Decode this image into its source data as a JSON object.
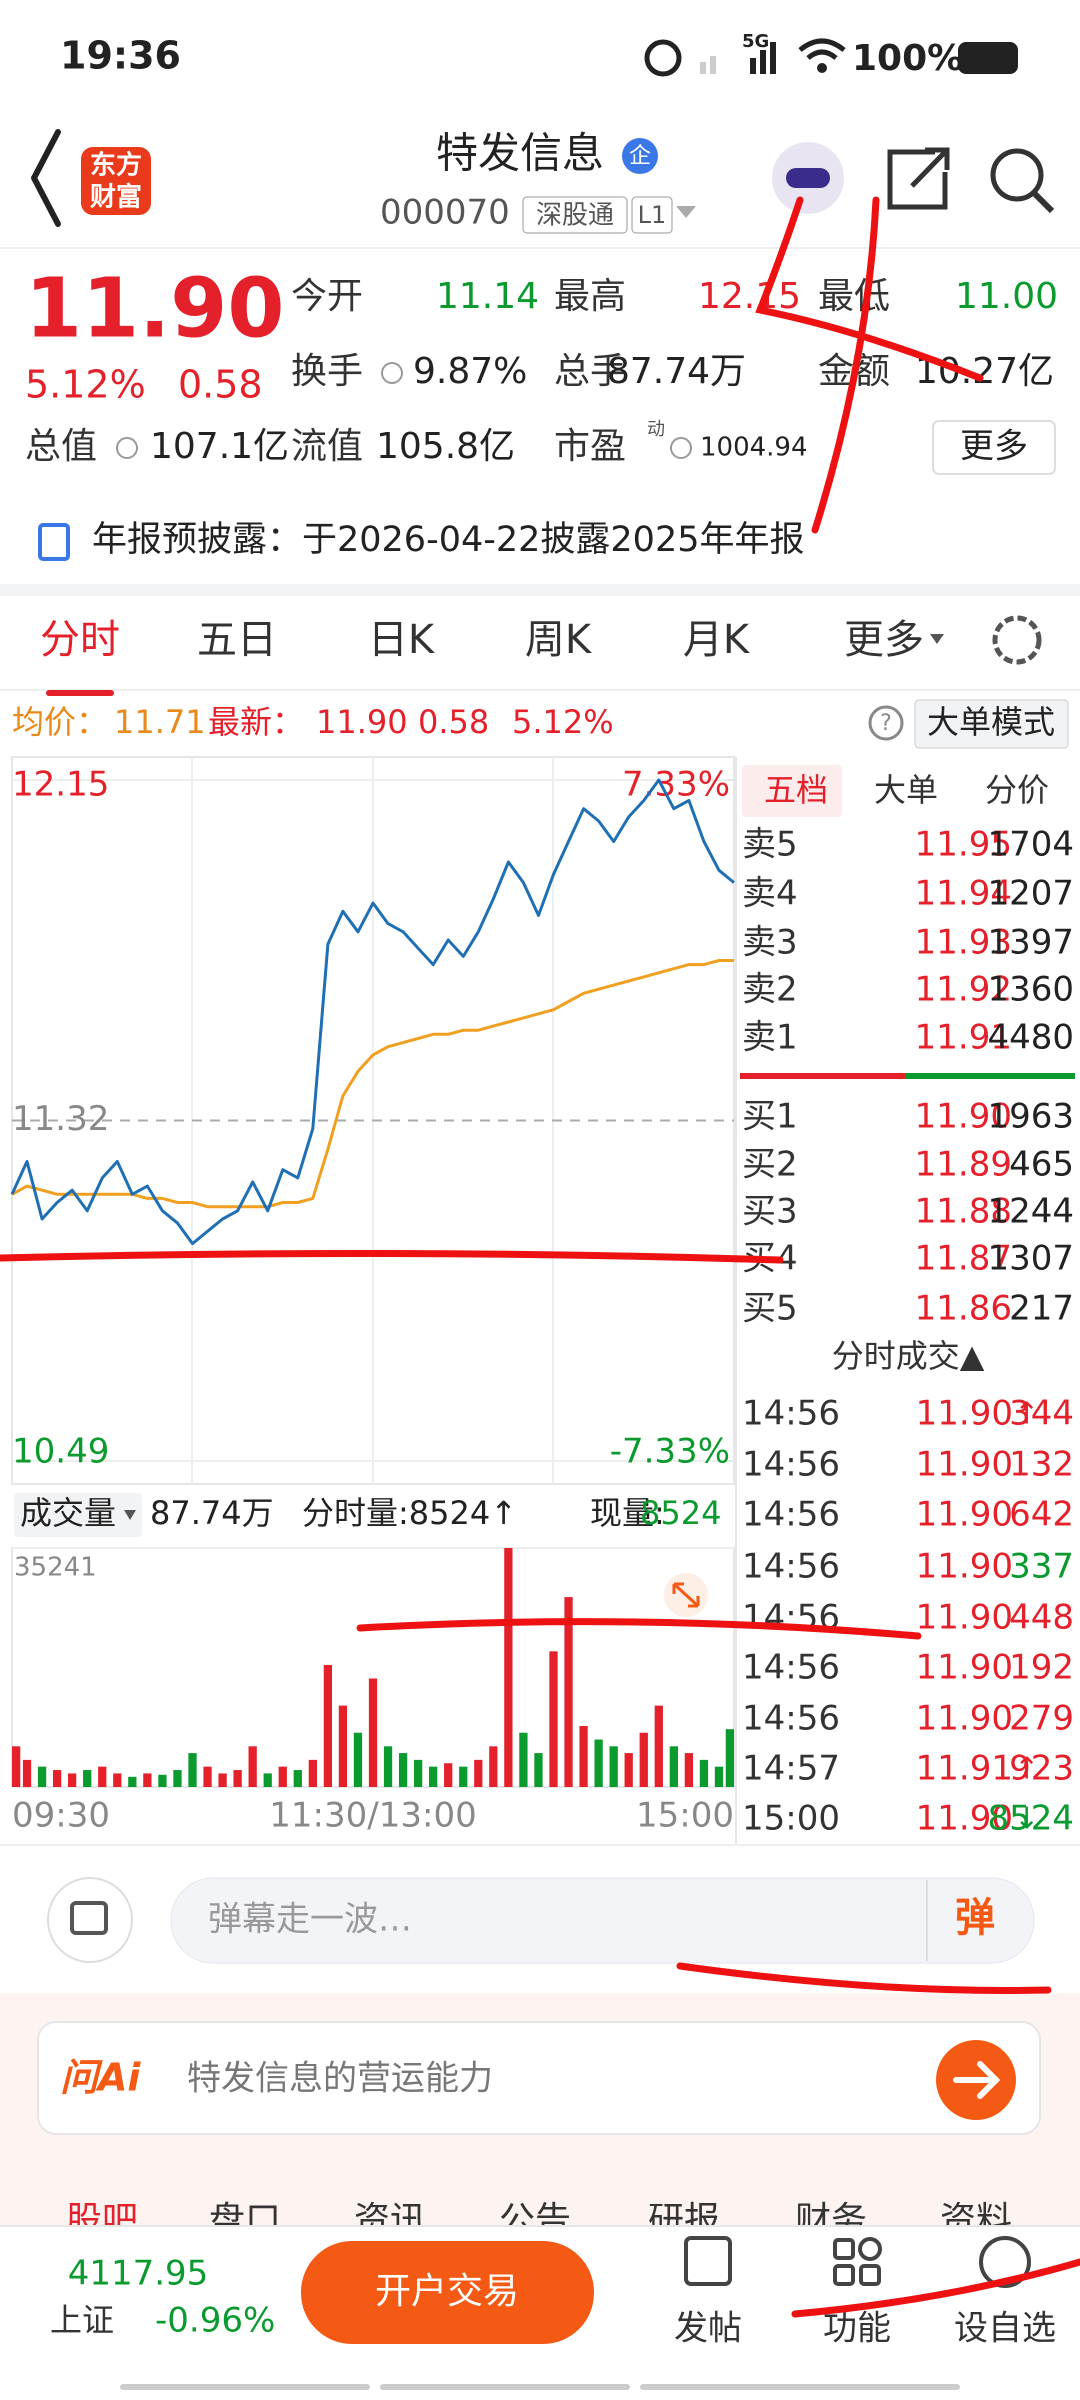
{
  "status_bar": {
    "time": "19:36",
    "network": "5G",
    "battery": "100%"
  },
  "header": {
    "logo": [
      "东方",
      "财富"
    ],
    "title": "特发信息",
    "badge": "企",
    "code": "000070",
    "tag": "深股通",
    "level": "L1"
  },
  "quote": {
    "price": "11.90",
    "change_pct": "5.12%",
    "change": "0.58",
    "fields": [
      {
        "label": "今开",
        "value": "11.14",
        "color": "#0a9a2e"
      },
      {
        "label": "最高",
        "value": "12.15",
        "color": "#e4202a"
      },
      {
        "label": "最低",
        "value": "11.00",
        "color": "#0a9a2e"
      },
      {
        "label": "换手",
        "value": "9.87%"
      },
      {
        "label": "总手",
        "value": "87.74万"
      },
      {
        "label": "金额",
        "value": "10.27亿"
      },
      {
        "label": "总值",
        "value": "107.1亿"
      },
      {
        "label": "流值",
        "value": "105.8亿"
      },
      {
        "label": "市盈",
        "sup": "动",
        "value": "1004.94"
      }
    ],
    "more": "更多"
  },
  "notice": "年报预披露：于2026-04-22披露2025年年报",
  "tabs": [
    "分时",
    "五日",
    "日K",
    "周K",
    "月K",
    "更多"
  ],
  "chart_header": {
    "avg_label": "均价：",
    "avg": "11.71",
    "last_label": "最新：",
    "last": "11.90",
    "change": "0.58",
    "change_pct": "5.12%",
    "mode": "大单模式"
  },
  "chart_data": {
    "type": "line",
    "categories": [
      "09:30",
      null,
      null,
      null,
      null,
      null,
      null,
      null,
      null,
      null,
      null,
      null,
      null,
      null,
      null,
      null,
      null,
      null,
      null,
      null,
      null,
      null,
      null,
      null,
      "11:30/13:00",
      null,
      null,
      null,
      null,
      null,
      null,
      null,
      null,
      null,
      null,
      null,
      null,
      null,
      null,
      null,
      null,
      null,
      null,
      null,
      null,
      null,
      null,
      null,
      "15:00"
    ],
    "series": [
      {
        "color": "#1f6fb5",
        "values": [
          11.14,
          11.22,
          11.08,
          11.12,
          11.15,
          11.1,
          11.18,
          11.22,
          11.14,
          11.16,
          11.1,
          11.07,
          11.02,
          11.05,
          11.08,
          11.1,
          11.17,
          11.1,
          11.2,
          11.18,
          11.3,
          11.75,
          11.83,
          11.78,
          11.85,
          11.8,
          11.78,
          11.74,
          11.7,
          11.76,
          11.72,
          11.78,
          11.86,
          11.95,
          11.9,
          11.82,
          11.92,
          12.0,
          12.08,
          12.05,
          12.0,
          12.06,
          12.1,
          12.15,
          12.08,
          12.1,
          12.0,
          11.93,
          11.9
        ]
      },
      {
        "color": "#f0a020",
        "values": [
          11.14,
          11.16,
          11.15,
          11.14,
          11.14,
          11.14,
          11.14,
          11.14,
          11.14,
          11.13,
          11.13,
          11.12,
          11.12,
          11.11,
          11.11,
          11.11,
          11.11,
          11.11,
          11.12,
          11.12,
          11.13,
          11.25,
          11.38,
          11.44,
          11.48,
          11.5,
          11.51,
          11.52,
          11.53,
          11.53,
          11.54,
          11.54,
          11.55,
          11.56,
          11.57,
          11.58,
          11.59,
          11.61,
          11.63,
          11.64,
          11.65,
          11.66,
          11.67,
          11.68,
          11.69,
          11.7,
          11.7,
          11.71,
          11.71
        ]
      }
    ],
    "ylim": [
      10.49,
      12.15
    ],
    "yticks": [
      12.15,
      11.32,
      10.49
    ],
    "y2lim": [
      -7.33,
      7.33
    ],
    "y2ticks": [
      {
        "value": 7.33,
        "label": "7.33%"
      },
      {
        "value": -7.33,
        "label": "-7.33%"
      }
    ]
  },
  "volume_data": {
    "type": "bar",
    "label": "成交量",
    "total": "87.74万",
    "period": "分时量:8524↑",
    "now_label": "现量:",
    "now": "8524",
    "ylim": [
      0,
      35241
    ],
    "yticks": [
      35241
    ],
    "values": [
      6000,
      4000,
      3000,
      2500,
      2000,
      2500,
      3000,
      2000,
      1500,
      2000,
      1800,
      2500,
      5000,
      3000,
      2000,
      2500,
      6000,
      2000,
      3000,
      2500,
      4000,
      18000,
      12000,
      8000,
      16000,
      6000,
      5000,
      4000,
      3000,
      3500,
      3000,
      4000,
      6000,
      35241,
      8000,
      5000,
      20000,
      28000,
      9000,
      7000,
      6000,
      5000,
      8000,
      12000,
      6000,
      5000,
      4000,
      3000,
      8524
    ]
  },
  "order_book": {
    "tabs": [
      "五档",
      "大单",
      "分价"
    ],
    "asks": [
      [
        "卖5",
        "11.95",
        "1704"
      ],
      [
        "卖4",
        "11.94",
        "1207"
      ],
      [
        "卖3",
        "11.93",
        "1397"
      ],
      [
        "卖2",
        "11.92",
        "1360"
      ],
      [
        "卖1",
        "11.91",
        "4480"
      ]
    ],
    "bids": [
      [
        "买1",
        "11.90",
        "1963"
      ],
      [
        "买2",
        "11.89",
        "465"
      ],
      [
        "买3",
        "11.88",
        "1244"
      ],
      [
        "买4",
        "11.87",
        "1307"
      ],
      [
        "买5",
        "11.86",
        "217"
      ]
    ]
  },
  "trades": {
    "title": "分时成交▲",
    "rows": [
      {
        "time": "14:56",
        "price": "11.90",
        "arrow": "↑",
        "volume": "344",
        "color": "#e4202a"
      },
      {
        "time": "14:56",
        "price": "11.90",
        "volume": "132",
        "color": "#e4202a"
      },
      {
        "time": "14:56",
        "price": "11.90",
        "volume": "642",
        "color": "#e4202a"
      },
      {
        "time": "14:56",
        "price": "11.90",
        "volume": "337",
        "color": "#0a9a2e"
      },
      {
        "time": "14:56",
        "price": "11.90",
        "volume": "448",
        "color": "#e4202a"
      },
      {
        "time": "14:56",
        "price": "11.90",
        "volume": "192",
        "color": "#e4202a"
      },
      {
        "time": "14:56",
        "price": "11.90",
        "volume": "279",
        "color": "#e4202a"
      },
      {
        "time": "14:57",
        "price": "11.91",
        "arrow": "↑",
        "volume": "923",
        "color": "#e4202a"
      },
      {
        "time": "15:00",
        "price": "11.90",
        "arrow": "↓",
        "volume": "8524",
        "color": "#0a9a2e"
      }
    ]
  },
  "comment": {
    "placeholder": "弹幕走一波…",
    "button": "弹"
  },
  "ai": {
    "brand": "问Ai",
    "prompt": "特发信息的营运能力"
  },
  "bottom_tabs": [
    "股吧",
    "盘口",
    "资讯",
    "公告",
    "研报",
    "财务",
    "资料"
  ],
  "nav": {
    "index_value": "4117.95",
    "index_name": "上证",
    "index_change": "-0.96%",
    "trade": "开户交易",
    "items": [
      "发帖",
      "功能",
      "设自选"
    ]
  }
}
